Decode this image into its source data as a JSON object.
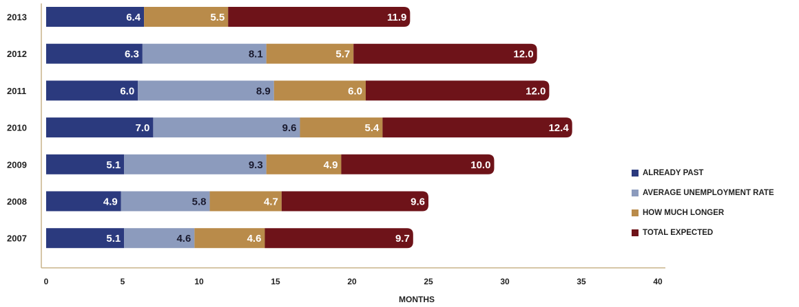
{
  "chart_data": {
    "type": "bar",
    "orientation": "horizontal",
    "stacked": true,
    "categories": [
      "2013",
      "2012",
      "2011",
      "2010",
      "2009",
      "2008",
      "2007"
    ],
    "series": [
      {
        "name": "ALREADY PAST",
        "color": "#2b3a7e",
        "values": [
          6.4,
          6.3,
          6.0,
          7.0,
          5.1,
          4.9,
          5.1
        ]
      },
      {
        "name": "AVERAGE UNEMPLOYMENT RATE",
        "color": "#8c9bbd",
        "values": [
          null,
          8.1,
          8.9,
          9.6,
          9.3,
          5.8,
          4.6
        ]
      },
      {
        "name": "HOW MUCH LONGER",
        "color": "#b98b4a",
        "values": [
          5.5,
          5.7,
          6.0,
          5.4,
          4.9,
          4.7,
          4.6
        ]
      },
      {
        "name": "TOTAL EXPECTED",
        "color": "#6e1319",
        "values": [
          11.9,
          12.0,
          12.0,
          12.4,
          10.0,
          9.6,
          9.7
        ]
      }
    ],
    "xlabel": "MONTHS",
    "ylabel": "",
    "xlim": [
      0,
      40
    ],
    "xticks": [
      "0",
      "5",
      "10",
      "15",
      "20",
      "25",
      "30",
      "35",
      "40"
    ],
    "grid": false,
    "legend_position": "right"
  }
}
